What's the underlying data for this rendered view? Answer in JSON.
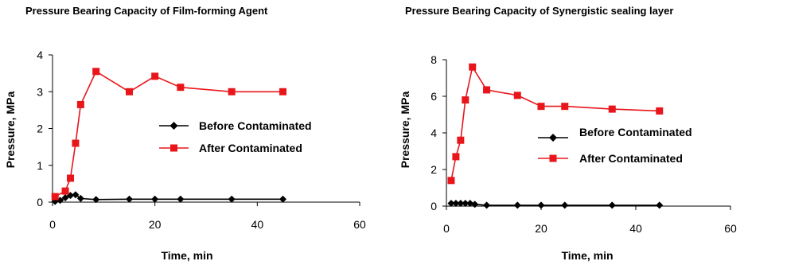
{
  "chart_data": [
    {
      "type": "line",
      "title": "Pressure Bearing Capacity of Film-forming Agent",
      "xlabel": "Time, min",
      "ylabel": "Pressure, MPa",
      "xlim": [
        0,
        60
      ],
      "ylim": [
        0,
        4
      ],
      "xticks": [
        "0",
        "20",
        "40",
        "60"
      ],
      "yticks": [
        "0",
        "1",
        "2",
        "3",
        "4"
      ],
      "grid": false,
      "legend_position": "right",
      "series": [
        {
          "name": "Before Contaminated",
          "color": "#000000",
          "marker": "diamond",
          "x": [
            0.5,
            1.5,
            2.5,
            3.5,
            4.5,
            5.5,
            8.5,
            15,
            20,
            25,
            35,
            45
          ],
          "y": [
            0.02,
            0.05,
            0.12,
            0.18,
            0.2,
            0.1,
            0.07,
            0.08,
            0.08,
            0.08,
            0.08,
            0.08
          ]
        },
        {
          "name": "After Contaminated",
          "color": "#e8161b",
          "marker": "square",
          "x": [
            0.5,
            2.5,
            3.5,
            4.5,
            5.5,
            8.5,
            15,
            20,
            25,
            35,
            45
          ],
          "y": [
            0.15,
            0.3,
            0.65,
            1.6,
            2.65,
            3.55,
            3.0,
            3.42,
            3.12,
            3.0,
            3.0
          ]
        }
      ]
    },
    {
      "type": "line",
      "title": "Pressure Bearing Capacity of Synergistic sealing layer",
      "xlabel": "Time, min",
      "ylabel": "Pressure, MPa",
      "xlim": [
        0,
        60
      ],
      "ylim": [
        0,
        8
      ],
      "xticks": [
        "0",
        "20",
        "40",
        "60"
      ],
      "yticks": [
        "0",
        "2",
        "4",
        "6",
        "8"
      ],
      "grid": false,
      "legend_position": "right",
      "series": [
        {
          "name": "Before Contaminated",
          "color": "#000000",
          "marker": "diamond",
          "x": [
            1,
            2,
            3,
            4,
            5,
            6,
            8.5,
            15,
            20,
            25,
            35,
            45
          ],
          "y": [
            0.15,
            0.15,
            0.15,
            0.15,
            0.15,
            0.1,
            0.05,
            0.05,
            0.05,
            0.05,
            0.05,
            0.05
          ]
        },
        {
          "name": "After Contaminated",
          "color": "#e8161b",
          "marker": "square",
          "x": [
            1,
            2,
            3,
            4,
            5.5,
            8.5,
            15,
            20,
            25,
            35,
            45
          ],
          "y": [
            1.4,
            2.7,
            3.6,
            5.8,
            7.6,
            6.35,
            6.05,
            5.45,
            5.45,
            5.3,
            5.2
          ]
        }
      ]
    }
  ]
}
